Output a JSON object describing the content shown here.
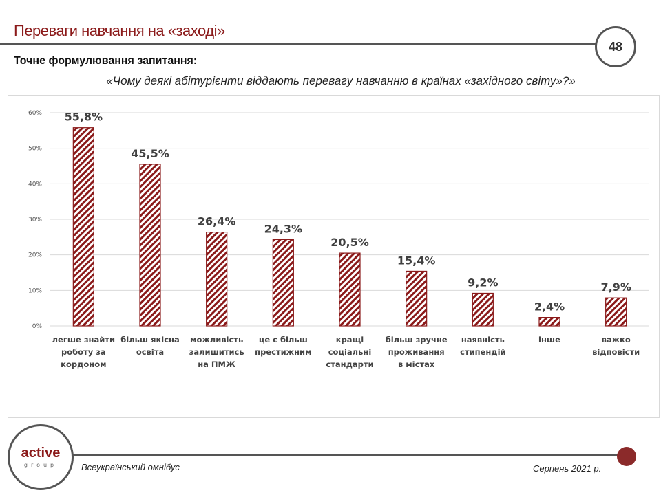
{
  "header": {
    "title": "Переваги навчання на «заході»",
    "page_number": "48",
    "question_label": "Точне формулювання  запитання:",
    "question": "«Чому деякі абітурієнти віддають перевагу навчанню в країнах «західного світу»?»"
  },
  "footer": {
    "logo_main": "active",
    "logo_sub": "group",
    "left_text": "Всеукраїнський омнібус",
    "right_text": "Серпень 2021 р."
  },
  "colors": {
    "accent": "#8b1a1a",
    "line": "#555555"
  },
  "chart_data": {
    "type": "bar",
    "categories": [
      "легше знайти\nроботу за\nкордоном",
      "більш якісна\nосвіта",
      "можливість\nзалишитись\nна ПМЖ",
      "це є більш\nпрестижним",
      "кращі\nсоціальні\nстандарти",
      "більш зручне\nпроживання\nв містах",
      "наявність\nстипендій",
      "інше",
      "важко\nвідповісти"
    ],
    "values": [
      55.8,
      45.5,
      26.4,
      24.3,
      20.5,
      15.4,
      9.2,
      2.4,
      7.9
    ],
    "data_labels": [
      "55,8%",
      "45,5%",
      "26,4%",
      "24,3%",
      "20,5%",
      "15,4%",
      "9,2%",
      "2,4%",
      "7,9%"
    ],
    "y_ticks": [
      "0%",
      "10%",
      "20%",
      "30%",
      "40%",
      "50%",
      "60%"
    ],
    "ylim": [
      0,
      60
    ],
    "grid": true,
    "pattern": "diagonal hatch"
  }
}
